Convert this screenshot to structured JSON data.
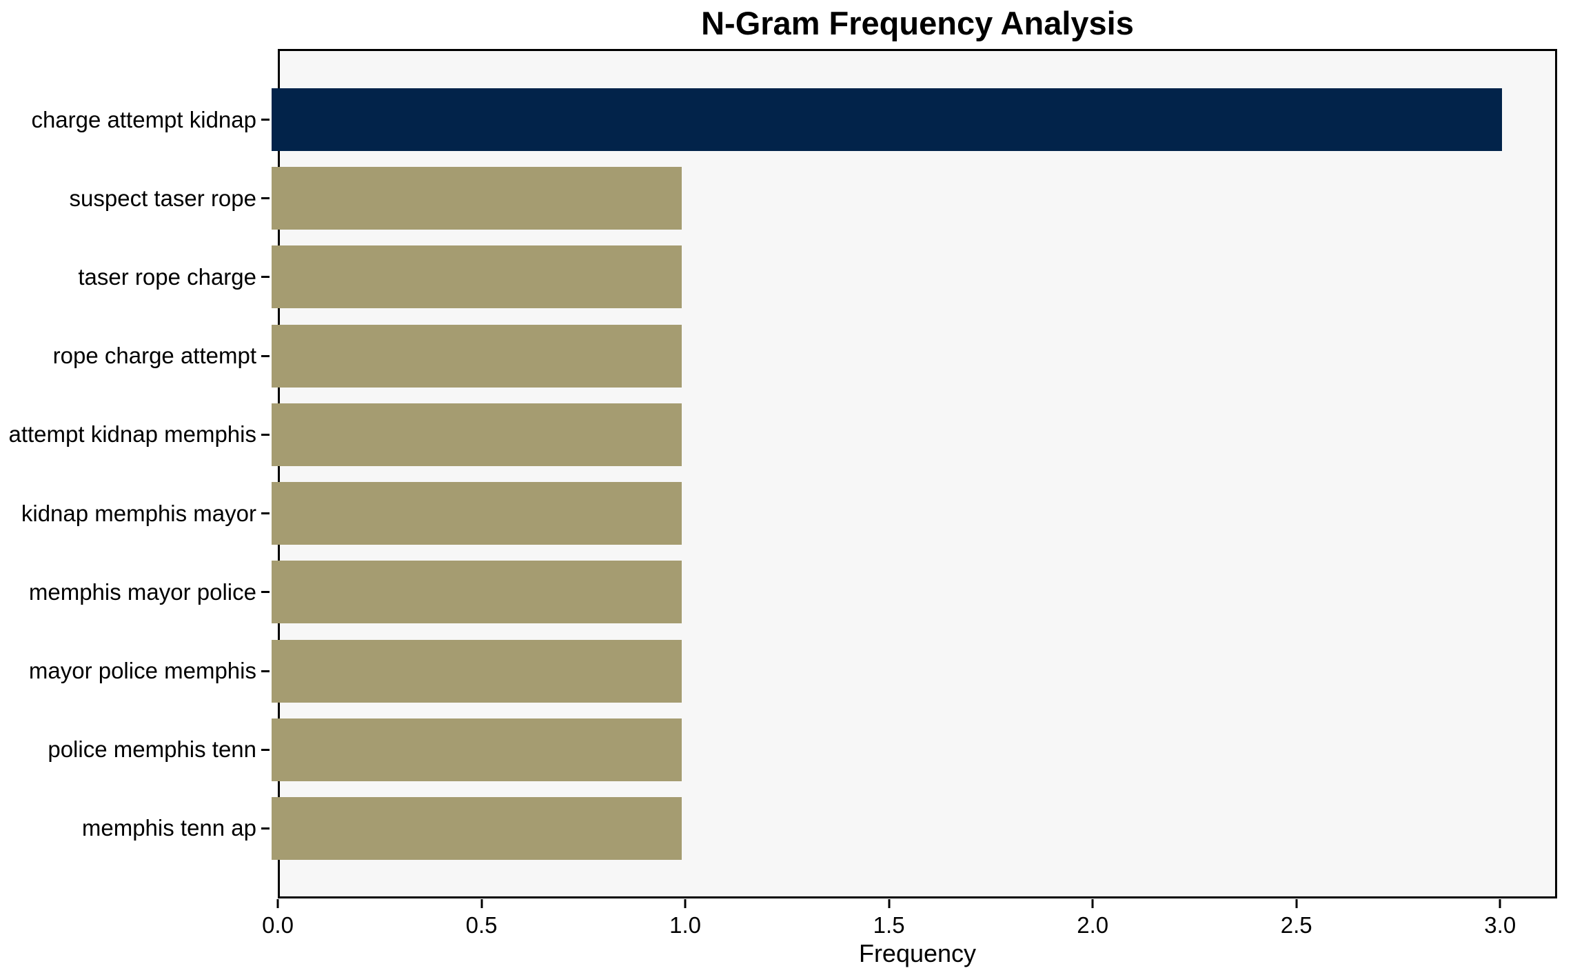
{
  "chart_data": {
    "type": "bar",
    "orientation": "horizontal",
    "title": "N-Gram Frequency Analysis",
    "xlabel": "Frequency",
    "ylabel": "",
    "categories": [
      "charge attempt kidnap",
      "suspect taser rope",
      "taser rope charge",
      "rope charge attempt",
      "attempt kidnap memphis",
      "kidnap memphis mayor",
      "memphis mayor police",
      "mayor police memphis",
      "police memphis tenn",
      "memphis tenn ap"
    ],
    "values": [
      3,
      1,
      1,
      1,
      1,
      1,
      1,
      1,
      1,
      1
    ],
    "bar_colors": [
      "#02234A",
      "#A59C71",
      "#A59C71",
      "#A59C71",
      "#A59C71",
      "#A59C71",
      "#A59C71",
      "#A59C71",
      "#A59C71",
      "#A59C71"
    ],
    "xlim": [
      0,
      3.14
    ],
    "xticks": [
      0.0,
      0.5,
      1.0,
      1.5,
      2.0,
      2.5,
      3.0
    ],
    "xtick_labels": [
      "0.0",
      "0.5",
      "1.0",
      "1.5",
      "2.0",
      "2.5",
      "3.0"
    ],
    "grid": false,
    "legend": "none",
    "colors": {
      "highlight_bar": "#02234A",
      "default_bar": "#A59C71",
      "plot_background": "#F7F7F7",
      "figure_background": "#FFFFFF",
      "axis_line": "#000000",
      "text": "#000000"
    }
  }
}
